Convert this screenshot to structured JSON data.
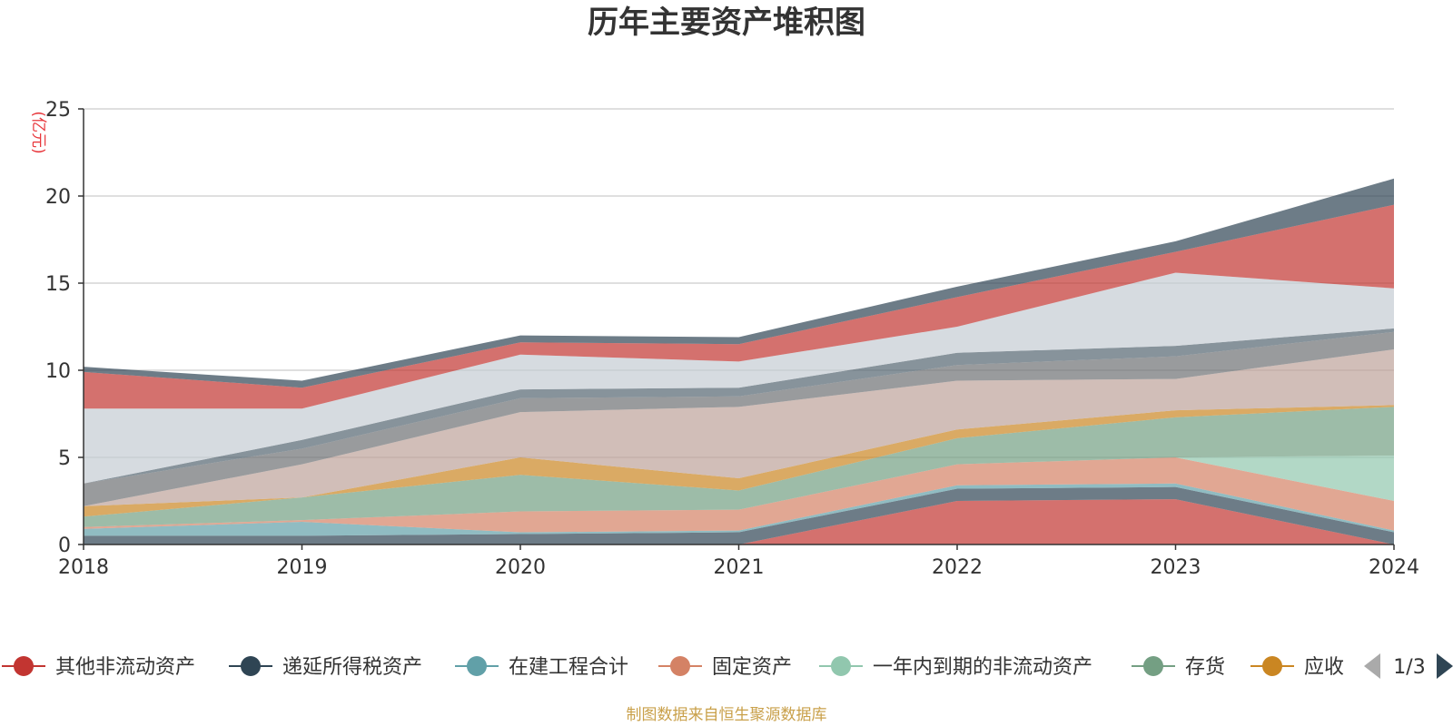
{
  "chart_data": {
    "type": "area",
    "stacked": true,
    "title": "历年主要资产堆积图",
    "ylabel": "(亿元)",
    "x": [
      "2018",
      "2019",
      "2020",
      "2021",
      "2022",
      "2023",
      "2024"
    ],
    "ylim": [
      0,
      25
    ],
    "yticks": [
      0,
      5,
      10,
      15,
      20,
      25
    ],
    "grid": true,
    "series": [
      {
        "name": "其他非流动资产",
        "color": "#c23531",
        "values": [
          0,
          0,
          0,
          0,
          2.5,
          2.6,
          0
        ]
      },
      {
        "name": "递延所得税资产",
        "color": "#2f4554",
        "values": [
          0.5,
          0.5,
          0.6,
          0.7,
          0.7,
          0.7,
          0.7
        ]
      },
      {
        "name": "在建工程合计",
        "color": "#61a0a8",
        "values": [
          0.4,
          0.8,
          0.1,
          0.1,
          0.2,
          0.2,
          0.1
        ]
      },
      {
        "name": "固定资产",
        "color": "#d48265",
        "values": [
          0.1,
          0.1,
          1.2,
          1.2,
          1.2,
          1.5,
          1.7
        ]
      },
      {
        "name": "一年内到期的非流动资产",
        "color": "#91c7ae",
        "values": [
          0,
          0,
          0,
          0,
          0,
          0,
          2.6
        ]
      },
      {
        "name": "存货",
        "color": "#749f83",
        "values": [
          0.6,
          1.3,
          2.1,
          1.1,
          1.5,
          2.3,
          2.8
        ]
      },
      {
        "name": "应收",
        "color": "#ca8622",
        "values": [
          0.6,
          0,
          1.0,
          0.7,
          0.5,
          0.4,
          0.1
        ]
      },
      {
        "name": "",
        "color": "#bda29a",
        "values": [
          0,
          1.9,
          2.6,
          4.1,
          2.8,
          1.8,
          3.2
        ]
      },
      {
        "name": "",
        "color": "#6e7074",
        "values": [
          1.3,
          0.9,
          0.8,
          0.6,
          0.9,
          1.3,
          1.0
        ]
      },
      {
        "name": "",
        "color": "#546570",
        "values": [
          0,
          0.5,
          0.5,
          0.5,
          0.7,
          0.6,
          0.2
        ]
      },
      {
        "name": "",
        "color": "#c4ccd3",
        "values": [
          4.3,
          1.8,
          2.0,
          1.5,
          1.5,
          4.2,
          2.3
        ]
      },
      {
        "name": "",
        "color": "#c23531",
        "values": [
          2.1,
          1.2,
          0.7,
          1.0,
          1.7,
          1.2,
          4.8
        ]
      },
      {
        "name": "",
        "color": "#2f4554",
        "values": [
          0.3,
          0.4,
          0.4,
          0.4,
          0.6,
          0.6,
          1.5
        ]
      }
    ]
  },
  "legend": {
    "items": [
      {
        "label": "其他非流动资产",
        "color": "#c23531"
      },
      {
        "label": "递延所得税资产",
        "color": "#2f4554"
      },
      {
        "label": "在建工程合计",
        "color": "#61a0a8"
      },
      {
        "label": "固定资产",
        "color": "#d48265"
      },
      {
        "label": "一年内到期的非流动资产",
        "color": "#91c7ae"
      },
      {
        "label": "存货",
        "color": "#749f83"
      },
      {
        "label": "应收",
        "color": "#ca8622"
      }
    ],
    "page": "1/3",
    "prev_icon": "triangle-left-icon",
    "next_icon": "triangle-right-icon"
  },
  "source": "制图数据来自恒生聚源数据库"
}
